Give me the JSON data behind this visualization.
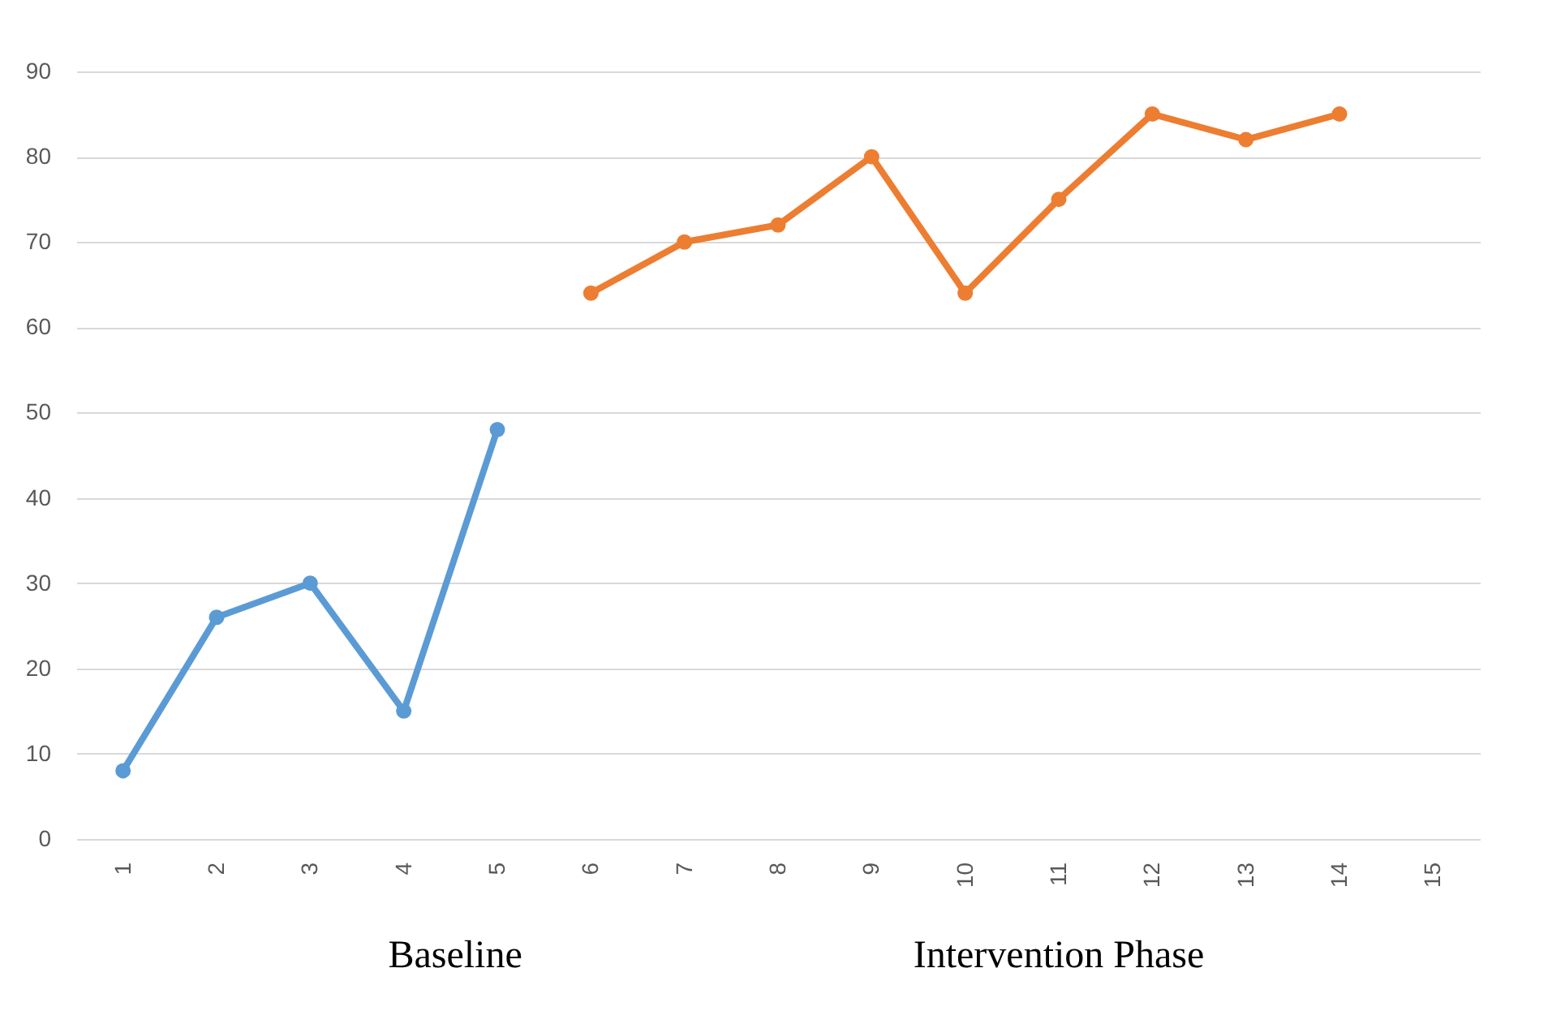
{
  "chart_data": {
    "type": "line",
    "categories": [
      "1",
      "2",
      "3",
      "4",
      "5",
      "6",
      "7",
      "8",
      "9",
      "10",
      "11",
      "12",
      "13",
      "14",
      "15"
    ],
    "series": [
      {
        "color": "#5b9bd5",
        "values": [
          8,
          26,
          30,
          15,
          48,
          null,
          null,
          null,
          null,
          null,
          null,
          null,
          null,
          null,
          null
        ]
      },
      {
        "color": "#ed7d31",
        "values": [
          null,
          null,
          null,
          null,
          null,
          64,
          70,
          72,
          80,
          64,
          75,
          85,
          82,
          85,
          null
        ]
      }
    ],
    "ylim": [
      0,
      90
    ],
    "yticks": [
      0,
      10,
      20,
      30,
      40,
      50,
      60,
      70,
      80,
      90
    ],
    "grid": "y",
    "marker": "circle",
    "line_style": "solid",
    "legend": false,
    "annotations": [
      "Baseline",
      "Intervention Phase"
    ]
  }
}
